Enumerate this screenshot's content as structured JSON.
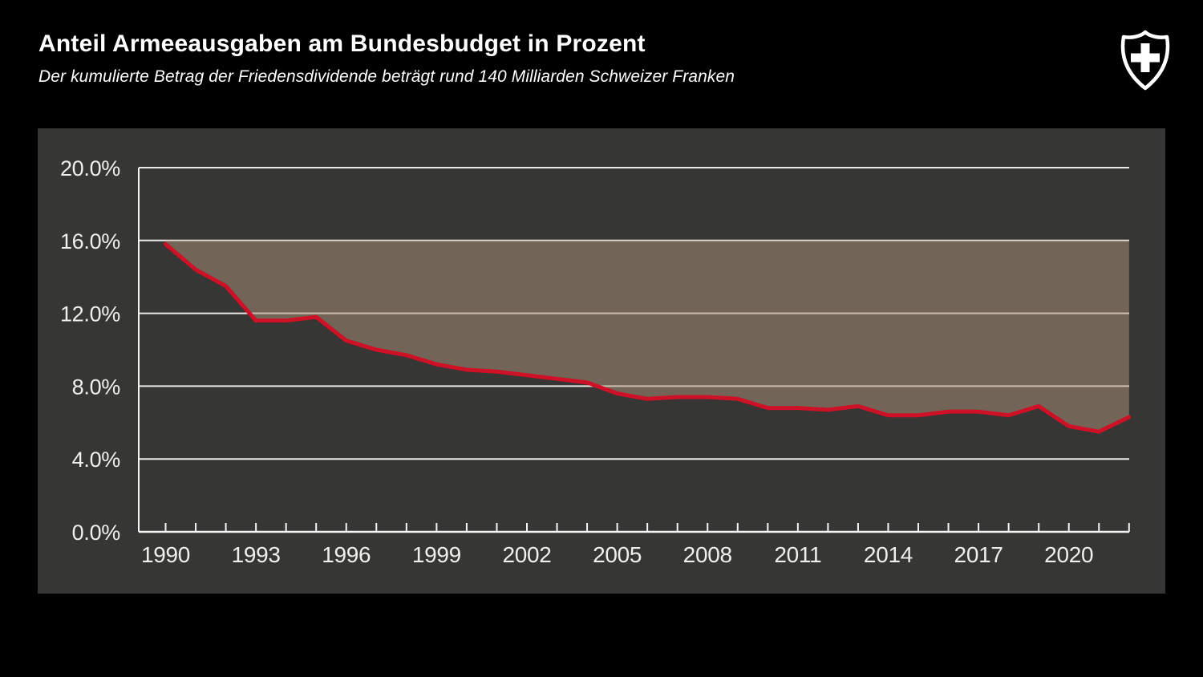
{
  "header": {
    "title": "Anteil Armeeausgaben am Bundesbudget in Prozent",
    "subtitle": "Der kumulierte Betrag der Friedensdividende beträgt rund 140 Milliarden Schweizer Franken",
    "logo_icon": "swiss-army-shield-cross"
  },
  "colors": {
    "page_background": "#000000",
    "panel_background": "#363634",
    "grid_line": "#eceae6",
    "axis_line": "#f5f5f5",
    "series_line": "#ce1126",
    "area_fill": "rgba(176,146,124,0.5)",
    "tick_label": "#f2f0ec",
    "title_text": "#ffffff"
  },
  "chart_data": {
    "type": "area",
    "title": "Anteil Armeeausgaben am Bundesbudget in Prozent",
    "subtitle": "Der kumulierte Betrag der Friedensdividende beträgt rund 140 Milliarden Schweizer Franken",
    "series_name": "Anteil Armeeausgaben am Bundesbudget",
    "unit": "%",
    "x": [
      1990,
      1991,
      1992,
      1993,
      1994,
      1995,
      1996,
      1997,
      1998,
      1999,
      2000,
      2001,
      2002,
      2003,
      2004,
      2005,
      2006,
      2007,
      2008,
      2009,
      2010,
      2011,
      2012,
      2013,
      2014,
      2015,
      2016,
      2017,
      2018,
      2019,
      2020,
      2021,
      2022
    ],
    "values": [
      15.8,
      14.4,
      13.5,
      11.6,
      11.6,
      11.8,
      10.5,
      10.0,
      9.7,
      9.2,
      8.9,
      8.8,
      8.6,
      8.4,
      8.2,
      7.6,
      7.3,
      7.4,
      7.4,
      7.3,
      6.8,
      6.8,
      6.7,
      6.9,
      6.4,
      6.4,
      6.6,
      6.6,
      6.4,
      6.9,
      5.8,
      5.5,
      6.3
    ],
    "xlabel": "",
    "ylabel": "",
    "xlim": [
      1990,
      2022
    ],
    "ylim": [
      0,
      20
    ],
    "y_tick_step": 4,
    "y_tick_labels": [
      "0.0%",
      "4.0%",
      "8.0%",
      "12.0%",
      "16.0%",
      "20.0%"
    ],
    "x_label_every": 3,
    "x_tick_labels": [
      "1990",
      "1993",
      "1996",
      "1999",
      "2002",
      "2005",
      "2008",
      "2011",
      "2014",
      "2017",
      "2020"
    ],
    "fill_between_line_and": 16.0,
    "grid": true,
    "legend_position": "none"
  }
}
